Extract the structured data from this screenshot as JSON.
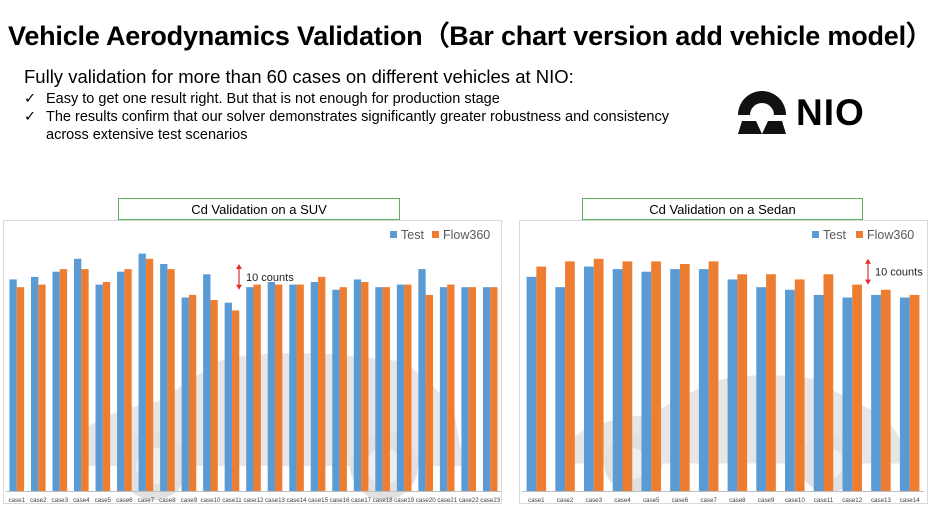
{
  "header": {
    "title": "Vehicle Aerodynamics Validation（Bar chart version add vehicle model）",
    "headline": "Fully validation for more than 60 cases on different vehicles at NIO:",
    "bullets": [
      "Easy to get one result right. But that is not enough for production stage",
      "The results confirm that our solver demonstrates significantly greater robustness and consistency across extensive test scenarios"
    ],
    "check_mark": "✓"
  },
  "logo": {
    "text": "NIO",
    "icon": "nio-logo-icon"
  },
  "colors": {
    "test": "#5b9bd5",
    "flow360": "#ed7d31",
    "annotation": "#e0302a",
    "title_border": "#5bb35b"
  },
  "chart_data": [
    {
      "type": "bar",
      "title": "Cd Validation on a SUV",
      "categories": [
        "case1",
        "case2",
        "case3",
        "case4",
        "case5",
        "case6",
        "case7",
        "case8",
        "case9",
        "case10",
        "case11",
        "case12",
        "case13",
        "case14",
        "case15",
        "case16",
        "case17",
        "case18",
        "case19",
        "case20",
        "case21",
        "case22",
        "case23"
      ],
      "series": [
        {
          "name": "Test",
          "values": [
            82,
            83,
            85,
            90,
            80,
            85,
            92,
            88,
            75,
            84,
            73,
            79,
            81,
            80,
            81,
            78,
            82,
            79,
            80,
            86,
            79,
            79,
            79
          ]
        },
        {
          "name": "Flow360",
          "values": [
            79,
            80,
            86,
            86,
            81,
            86,
            90,
            86,
            76,
            74,
            70,
            80,
            80,
            80,
            83,
            79,
            81,
            79,
            80,
            76,
            80,
            79,
            79
          ]
        }
      ],
      "annotation": "10 counts",
      "annotation_span": [
        78,
        88
      ],
      "ylim": [
        0,
        100
      ],
      "legend": "top-right",
      "vehicle_image": "suv-silhouette"
    },
    {
      "type": "bar",
      "title": "Cd Validation on a Sedan",
      "categories": [
        "case1",
        "case2",
        "case3",
        "case4",
        "case5",
        "case6",
        "case7",
        "case8",
        "case9",
        "case10",
        "case11",
        "case12",
        "case13",
        "case14"
      ],
      "series": [
        {
          "name": "Test",
          "values": [
            83,
            79,
            87,
            86,
            85,
            86,
            86,
            82,
            79,
            78,
            76,
            75,
            76,
            75
          ]
        },
        {
          "name": "Flow360",
          "values": [
            87,
            89,
            90,
            89,
            89,
            88,
            89,
            84,
            84,
            82,
            84,
            80,
            78,
            76
          ]
        }
      ],
      "annotation": "10 counts",
      "annotation_span": [
        80,
        90
      ],
      "ylim": [
        0,
        100
      ],
      "legend": "top-right",
      "vehicle_image": "sedan-silhouette"
    }
  ]
}
